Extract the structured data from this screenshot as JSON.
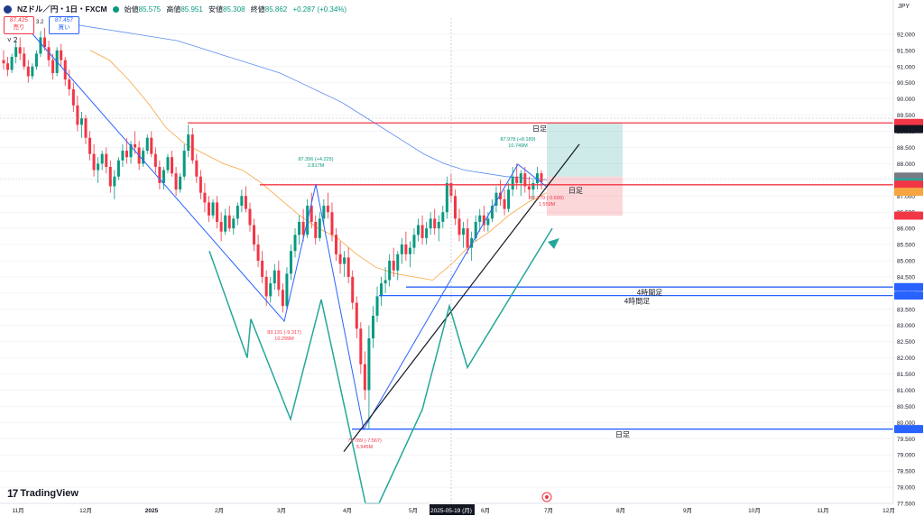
{
  "header": {
    "symbol": "NZドル／円・1日・FXCM",
    "open_label": "始値",
    "open_value": "85.575",
    "high_label": "高値",
    "high_value": "85.951",
    "low_label": "安値",
    "low_value": "85.308",
    "close_label": "終値",
    "close_value": "85.862",
    "change": "+0.287 (+0.34%)",
    "currency": "JPY"
  },
  "quote": {
    "sell_price": "87.425",
    "sell_label": "売り",
    "buy_price": "87.457",
    "buy_label": "買い",
    "spread": "3.2"
  },
  "colors": {
    "up": "#089981",
    "down": "#f23645",
    "blue": "#2962ff",
    "teal": "#26a69a",
    "orange": "#f7a540",
    "ma_blue": "#5b8def"
  },
  "chart_data": {
    "type": "candlestick",
    "title": "",
    "ylim": [
      77.5,
      92.5
    ],
    "y_ticks": [
      "92.000",
      "91.500",
      "91.000",
      "90.500",
      "90.000",
      "89.500",
      "89.000",
      "88.500",
      "88.000",
      "87.500",
      "87.000",
      "86.500",
      "86.000",
      "85.500",
      "85.000",
      "84.500",
      "84.000",
      "83.500",
      "83.000",
      "82.500",
      "82.000",
      "81.500",
      "81.000",
      "80.500",
      "80.000",
      "79.500",
      "79.000",
      "78.500",
      "78.000",
      "77.500"
    ],
    "x_ticks": [
      "11月",
      "12月",
      "2025",
      "2月",
      "3月",
      "4月",
      "5月",
      "2025-05-19 (月)",
      "6月",
      "7月",
      "8月",
      "9月",
      "10月",
      "11月",
      "12月"
    ],
    "horizontal_levels": [
      {
        "price": 89.258,
        "label": "日足",
        "color": "#f23645"
      },
      {
        "price": 87.347,
        "label": "日足",
        "color": "#f23645"
      },
      {
        "price": 84.186,
        "label": "4時間足",
        "color": "#2962ff"
      },
      {
        "price": 83.923,
        "label": "4時間足",
        "color": "#2962ff"
      },
      {
        "price": 79.795,
        "label": "日足",
        "color": "#2962ff"
      }
    ],
    "price_tags": [
      {
        "text": "89.258",
        "price": 89.258,
        "color": "#f23645"
      },
      {
        "text": "89.263",
        "price": 89.263,
        "color": "#131722"
      },
      {
        "text": "87.601",
        "price": 87.601,
        "color": "#787b86"
      },
      {
        "text": "87.568",
        "price": 87.568,
        "color": "#2962ff"
      },
      {
        "text": "87.425",
        "price": 87.425,
        "color": "#26a69a"
      },
      {
        "text": "09:44:35",
        "price": 87.425,
        "color": "#26a69a"
      },
      {
        "text": "87.347",
        "price": 87.347,
        "color": "#f23645"
      },
      {
        "text": "87.128",
        "price": 87.128,
        "color": "#f7a540"
      },
      {
        "text": "86.394",
        "price": 86.394,
        "color": "#f23645"
      },
      {
        "text": "84.186",
        "price": 84.186,
        "color": "#2962ff"
      },
      {
        "text": "83.923",
        "price": 83.923,
        "color": "#2962ff"
      },
      {
        "text": "79.795",
        "price": 79.795,
        "color": "#2962ff"
      }
    ],
    "measure_labels": [
      {
        "line1": "87.356 (+4.225)",
        "line2": "2.817M",
        "color": "#089981"
      },
      {
        "line1": "83.131 (-9.317)",
        "line2": "10.299M",
        "color": "#f23645"
      },
      {
        "line1": "79.789 (-7.567)",
        "line2": "5.945M",
        "color": "#f23645"
      },
      {
        "line1": "87.978 (+8.189)",
        "line2": "10.749M",
        "color": "#089981"
      },
      {
        "line1": "87.279 (-0.699)",
        "line2": "1.559M",
        "color": "#f23645"
      }
    ],
    "candles": [
      [
        91.2,
        91.5,
        90.9,
        91.1
      ],
      [
        91.1,
        91.3,
        90.7,
        90.9
      ],
      [
        90.9,
        91.4,
        90.8,
        91.3
      ],
      [
        91.3,
        91.8,
        91.1,
        91.6
      ],
      [
        91.6,
        91.9,
        91.2,
        91.4
      ],
      [
        91.4,
        91.6,
        90.9,
        91.0
      ],
      [
        91.0,
        91.2,
        90.5,
        90.7
      ],
      [
        90.7,
        91.1,
        90.6,
        91.0
      ],
      [
        91.0,
        91.5,
        90.9,
        91.4
      ],
      [
        91.4,
        92.1,
        91.3,
        91.9
      ],
      [
        91.9,
        92.2,
        91.5,
        91.6
      ],
      [
        91.6,
        91.8,
        91.0,
        91.2
      ],
      [
        91.2,
        91.4,
        90.6,
        90.8
      ],
      [
        90.8,
        91.6,
        90.7,
        91.5
      ],
      [
        91.5,
        91.7,
        91.0,
        91.2
      ],
      [
        91.2,
        91.3,
        90.4,
        90.6
      ],
      [
        90.6,
        90.9,
        90.1,
        90.3
      ],
      [
        90.3,
        90.5,
        89.6,
        89.8
      ],
      [
        89.8,
        90.1,
        89.0,
        89.2
      ],
      [
        89.2,
        89.6,
        88.8,
        89.4
      ],
      [
        89.4,
        89.5,
        88.6,
        88.8
      ],
      [
        88.8,
        89.0,
        88.1,
        88.3
      ],
      [
        88.3,
        88.6,
        87.6,
        87.8
      ],
      [
        87.8,
        88.2,
        87.4,
        88.0
      ],
      [
        88.0,
        88.4,
        87.8,
        88.3
      ],
      [
        88.3,
        88.5,
        87.7,
        87.9
      ],
      [
        87.9,
        88.1,
        87.1,
        87.3
      ],
      [
        87.3,
        87.8,
        86.9,
        87.6
      ],
      [
        87.6,
        88.2,
        87.5,
        88.1
      ],
      [
        88.1,
        88.6,
        87.9,
        88.4
      ],
      [
        88.4,
        88.8,
        88.0,
        88.2
      ],
      [
        88.2,
        88.7,
        88.0,
        88.6
      ],
      [
        88.6,
        89.0,
        88.3,
        88.5
      ],
      [
        88.5,
        88.7,
        87.8,
        88.0
      ],
      [
        88.0,
        88.5,
        87.9,
        88.4
      ],
      [
        88.4,
        88.9,
        88.3,
        88.8
      ],
      [
        88.8,
        89.0,
        88.2,
        88.3
      ],
      [
        88.3,
        88.5,
        87.7,
        87.9
      ],
      [
        87.9,
        88.1,
        87.2,
        87.4
      ],
      [
        87.4,
        87.9,
        87.2,
        87.8
      ],
      [
        87.8,
        88.3,
        87.7,
        88.2
      ],
      [
        88.2,
        88.4,
        87.6,
        87.7
      ],
      [
        87.7,
        87.9,
        87.0,
        87.2
      ],
      [
        87.2,
        87.7,
        87.1,
        87.6
      ],
      [
        87.6,
        88.6,
        87.5,
        88.4
      ],
      [
        88.4,
        89.2,
        88.2,
        88.9
      ],
      [
        88.9,
        89.1,
        88.0,
        88.1
      ],
      [
        88.1,
        88.3,
        87.4,
        87.6
      ],
      [
        87.6,
        87.8,
        86.9,
        87.1
      ],
      [
        87.1,
        87.4,
        86.5,
        86.8
      ],
      [
        86.8,
        87.0,
        86.2,
        86.4
      ],
      [
        86.4,
        86.9,
        86.3,
        86.8
      ],
      [
        86.8,
        87.0,
        86.0,
        86.2
      ],
      [
        86.2,
        86.5,
        85.6,
        85.9
      ],
      [
        85.9,
        86.6,
        85.8,
        86.4
      ],
      [
        86.4,
        86.7,
        85.9,
        86.0
      ],
      [
        86.0,
        86.4,
        85.8,
        86.3
      ],
      [
        86.3,
        86.8,
        86.1,
        86.7
      ],
      [
        86.7,
        87.2,
        86.5,
        87.0
      ],
      [
        87.0,
        87.3,
        86.5,
        86.6
      ],
      [
        86.6,
        86.8,
        85.9,
        86.1
      ],
      [
        86.1,
        86.3,
        85.3,
        85.5
      ],
      [
        85.5,
        85.8,
        84.8,
        85.0
      ],
      [
        85.0,
        85.3,
        84.3,
        84.5
      ],
      [
        84.5,
        84.7,
        83.6,
        83.9
      ],
      [
        83.9,
        84.5,
        83.7,
        84.3
      ],
      [
        84.3,
        84.9,
        84.1,
        84.7
      ],
      [
        84.7,
        85.0,
        83.9,
        84.1
      ],
      [
        84.1,
        84.3,
        83.4,
        83.6
      ],
      [
        83.6,
        84.8,
        83.5,
        84.6
      ],
      [
        84.6,
        85.5,
        84.4,
        85.3
      ],
      [
        85.3,
        86.0,
        85.1,
        85.8
      ],
      [
        85.8,
        86.4,
        85.5,
        86.2
      ],
      [
        86.2,
        86.6,
        85.6,
        85.8
      ],
      [
        85.8,
        86.9,
        85.7,
        86.7
      ],
      [
        86.7,
        87.1,
        86.0,
        86.2
      ],
      [
        86.2,
        86.4,
        85.5,
        85.7
      ],
      [
        85.7,
        86.5,
        85.6,
        86.3
      ],
      [
        86.3,
        86.9,
        86.1,
        86.7
      ],
      [
        86.7,
        87.1,
        86.3,
        86.5
      ],
      [
        86.5,
        86.8,
        85.6,
        85.8
      ],
      [
        85.8,
        86.0,
        85.0,
        85.2
      ],
      [
        85.2,
        85.6,
        84.6,
        84.9
      ],
      [
        84.9,
        85.3,
        84.5,
        85.1
      ],
      [
        85.1,
        85.4,
        84.3,
        84.5
      ],
      [
        84.5,
        84.7,
        83.5,
        83.7
      ],
      [
        83.7,
        83.9,
        82.6,
        82.9
      ],
      [
        82.9,
        83.1,
        81.5,
        81.8
      ],
      [
        81.8,
        82.2,
        80.7,
        81.0
      ],
      [
        81.0,
        83.0,
        79.8,
        82.6
      ],
      [
        82.6,
        83.6,
        82.3,
        83.3
      ],
      [
        83.3,
        84.2,
        83.1,
        83.9
      ],
      [
        83.9,
        84.5,
        83.6,
        84.3
      ],
      [
        84.3,
        84.8,
        84.0,
        84.4
      ],
      [
        84.4,
        85.2,
        84.2,
        85.0
      ],
      [
        85.0,
        85.4,
        84.5,
        84.7
      ],
      [
        84.7,
        85.3,
        84.4,
        85.2
      ],
      [
        85.2,
        85.7,
        84.9,
        85.5
      ],
      [
        85.5,
        85.9,
        85.0,
        85.2
      ],
      [
        85.2,
        85.6,
        84.8,
        85.4
      ],
      [
        85.4,
        86.0,
        85.2,
        85.8
      ],
      [
        85.8,
        86.3,
        85.6,
        86.1
      ],
      [
        86.1,
        86.4,
        85.5,
        85.7
      ],
      [
        85.7,
        86.2,
        85.5,
        86.0
      ],
      [
        86.0,
        86.5,
        85.8,
        86.3
      ],
      [
        86.3,
        86.6,
        85.8,
        86.0
      ],
      [
        86.0,
        86.4,
        85.6,
        86.2
      ],
      [
        86.2,
        86.7,
        86.0,
        86.5
      ],
      [
        86.5,
        87.6,
        86.3,
        87.4
      ],
      [
        87.4,
        87.7,
        86.8,
        87.0
      ],
      [
        87.0,
        87.2,
        86.1,
        86.3
      ],
      [
        86.3,
        86.6,
        85.6,
        85.8
      ],
      [
        85.8,
        86.2,
        85.4,
        86.0
      ],
      [
        86.0,
        86.3,
        85.2,
        85.4
      ],
      [
        85.4,
        85.9,
        85.0,
        85.7
      ],
      [
        85.7,
        86.4,
        85.6,
        86.2
      ],
      [
        86.2,
        86.6,
        85.9,
        86.4
      ],
      [
        86.4,
        86.7,
        85.9,
        86.1
      ],
      [
        86.1,
        86.5,
        85.9,
        86.3
      ],
      [
        86.3,
        86.9,
        86.2,
        86.7
      ],
      [
        86.7,
        87.3,
        86.5,
        87.1
      ],
      [
        87.1,
        87.5,
        86.7,
        86.9
      ],
      [
        86.9,
        87.2,
        86.4,
        86.6
      ],
      [
        86.6,
        87.4,
        86.5,
        87.2
      ],
      [
        87.2,
        87.9,
        87.0,
        87.6
      ],
      [
        87.6,
        88.0,
        87.2,
        87.4
      ],
      [
        87.4,
        87.8,
        87.0,
        87.7
      ],
      [
        87.7,
        87.9,
        87.1,
        87.3
      ],
      [
        87.3,
        87.6,
        86.9,
        87.2
      ],
      [
        87.2,
        87.5,
        86.9,
        87.4
      ],
      [
        87.4,
        87.9,
        87.2,
        87.7
      ],
      [
        87.7,
        87.8,
        87.2,
        87.43
      ]
    ],
    "ma_long": [
      92.4,
      92.3,
      92.2,
      92.1,
      92.0,
      91.9,
      91.8,
      91.6,
      91.4,
      91.2,
      91.0,
      90.8,
      90.5,
      90.2,
      89.9,
      89.5,
      89.1,
      88.7,
      88.3,
      88.0,
      87.8,
      87.7,
      87.6,
      87.55,
      87.5
    ],
    "ma_mid": [
      91.5,
      91.2,
      90.6,
      89.9,
      89.1,
      88.6,
      88.3,
      88.0,
      87.8,
      87.4,
      86.9,
      86.4,
      86.0,
      85.7,
      85.2,
      84.8,
      84.6,
      84.5,
      84.4,
      84.9,
      85.5,
      85.9,
      86.4,
      86.8,
      87.1
    ]
  }
}
